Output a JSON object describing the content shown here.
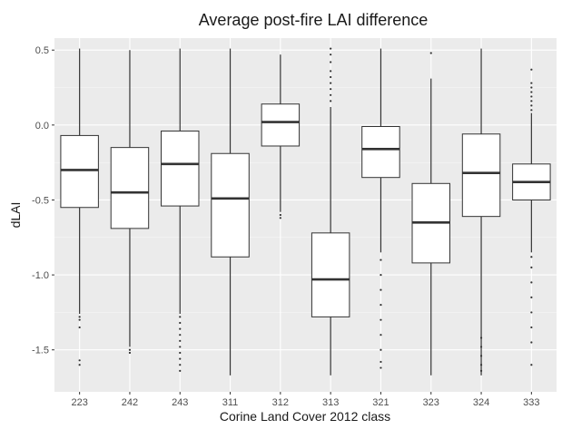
{
  "chart_data": {
    "type": "boxplot",
    "title": "Average post-fire LAI difference",
    "xlabel": "Corine Land Cover 2012 class",
    "ylabel": "dLAI",
    "ylim": [
      -1.78,
      0.58
    ],
    "yticks": [
      0.5,
      0.0,
      -0.5,
      -1.0,
      -1.5
    ],
    "ytick_labels": [
      "0.5",
      "0.0",
      "-0.5",
      "-1.0",
      "-1.5"
    ],
    "grid": true,
    "background": "#ebebeb",
    "categories": [
      "223",
      "242",
      "243",
      "311",
      "312",
      "313",
      "321",
      "323",
      "324",
      "333"
    ],
    "boxes": [
      {
        "label": "223",
        "whisker_low": -1.26,
        "q1": -0.55,
        "median": -0.3,
        "q3": -0.07,
        "whisker_high": 0.51,
        "outliers": [
          -1.28,
          -1.3,
          -1.35,
          -1.57,
          -1.6
        ]
      },
      {
        "label": "242",
        "whisker_low": -1.48,
        "q1": -0.69,
        "median": -0.45,
        "q3": -0.15,
        "whisker_high": 0.5,
        "outliers": [
          -1.5,
          -1.52
        ]
      },
      {
        "label": "243",
        "whisker_low": -1.26,
        "q1": -0.54,
        "median": -0.26,
        "q3": -0.04,
        "whisker_high": 0.51,
        "outliers": [
          -1.28,
          -1.32,
          -1.36,
          -1.4,
          -1.44,
          -1.48,
          -1.52,
          -1.56,
          -1.6,
          -1.64
        ]
      },
      {
        "label": "311",
        "whisker_low": -1.67,
        "q1": -0.88,
        "median": -0.49,
        "q3": -0.19,
        "whisker_high": 0.51,
        "outliers": []
      },
      {
        "label": "312",
        "whisker_low": -0.58,
        "q1": -0.14,
        "median": 0.02,
        "q3": 0.14,
        "whisker_high": 0.47,
        "outliers": [
          -0.6,
          -0.62
        ]
      },
      {
        "label": "313",
        "whisker_low": -1.67,
        "q1": -1.28,
        "median": -1.03,
        "q3": -0.72,
        "whisker_high": 0.12,
        "outliers": [
          0.16,
          0.2,
          0.24,
          0.28,
          0.32,
          0.36,
          0.42,
          0.47,
          0.51
        ]
      },
      {
        "label": "321",
        "whisker_low": -0.85,
        "q1": -0.35,
        "median": -0.16,
        "q3": -0.01,
        "whisker_high": 0.51,
        "outliers": [
          -0.9,
          -1.0,
          -1.1,
          -1.2,
          -1.3,
          -1.4,
          -1.5,
          -1.58,
          -1.62
        ]
      },
      {
        "label": "323",
        "whisker_low": -1.67,
        "q1": -0.92,
        "median": -0.65,
        "q3": -0.39,
        "whisker_high": 0.31,
        "outliers": [
          0.48
        ]
      },
      {
        "label": "324",
        "whisker_low": -1.67,
        "q1": -0.61,
        "median": -0.32,
        "q3": -0.06,
        "whisker_high": 0.51,
        "outliers": [
          -1.42,
          -1.48,
          -1.54,
          -1.6,
          -1.64
        ]
      },
      {
        "label": "333",
        "whisker_low": -0.85,
        "q1": -0.5,
        "median": -0.38,
        "q3": -0.26,
        "whisker_high": 0.08,
        "outliers": [
          0.1,
          0.13,
          0.16,
          0.19,
          0.22,
          0.25,
          0.28,
          0.37,
          -0.88,
          -0.95,
          -1.05,
          -1.15,
          -1.25,
          -1.35,
          -1.45,
          -1.6
        ]
      }
    ]
  }
}
